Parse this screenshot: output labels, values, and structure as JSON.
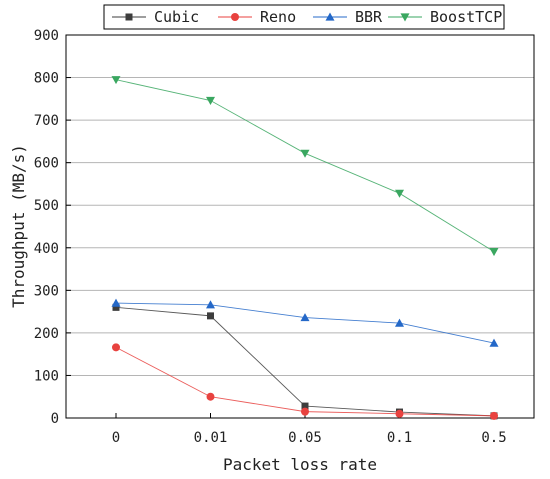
{
  "chart_data": {
    "type": "line",
    "title": "",
    "xlabel": "Packet loss rate",
    "ylabel": "Throughput (MB/s)",
    "categories": [
      "0",
      "0.01",
      "0.05",
      "0.1",
      "0.5"
    ],
    "ylim": [
      0,
      900
    ],
    "yticks": [
      0,
      100,
      200,
      300,
      400,
      500,
      600,
      700,
      800,
      900
    ],
    "grid": "horizontal",
    "legend_position": "top",
    "series": [
      {
        "name": "Cubic",
        "color": "#3d3d3d",
        "marker": "square",
        "values": [
          260,
          240,
          28,
          14,
          5
        ]
      },
      {
        "name": "Reno",
        "color": "#e8423f",
        "marker": "circle",
        "values": [
          166,
          50,
          15,
          10,
          5
        ]
      },
      {
        "name": "BBR",
        "color": "#2468c8",
        "marker": "triangle-up",
        "values": [
          270,
          266,
          236,
          223,
          176
        ]
      },
      {
        "name": "BoostTCP",
        "color": "#3aa760",
        "marker": "triangle-down",
        "values": [
          795,
          746,
          622,
          528,
          391
        ]
      }
    ]
  }
}
